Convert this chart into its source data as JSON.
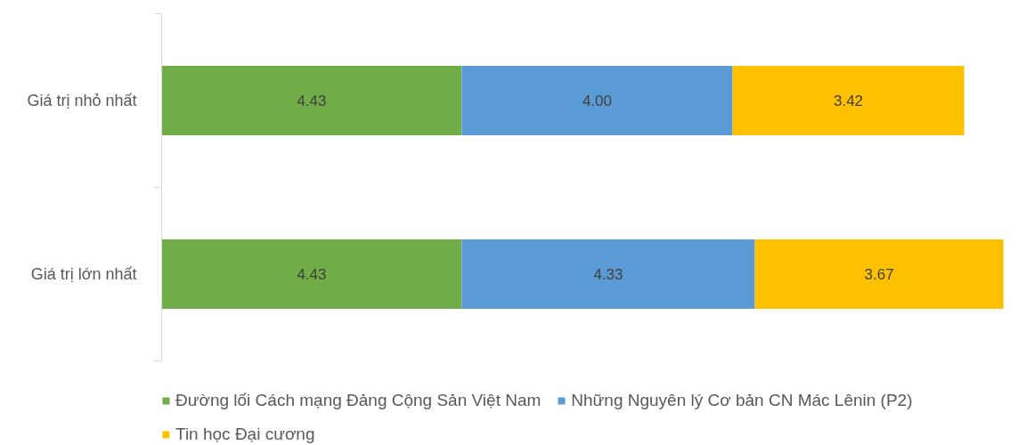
{
  "chart_data": {
    "type": "bar",
    "orientation": "horizontal",
    "stacked": true,
    "legend": "bottom",
    "categories": [
      "Giá trị nhỏ nhất",
      "Giá trị lớn nhất"
    ],
    "series": [
      {
        "name": "Đường lối Cách mạng Đảng Cộng Sản Việt Nam",
        "color": "#70ad47",
        "values": [
          4.43,
          4.43
        ],
        "value_labels": [
          "4.43",
          "4.43"
        ]
      },
      {
        "name": "Những Nguyên lý Cơ bản CN Mác Lênin (P2)",
        "color": "#5b9bd5",
        "values": [
          4.0,
          4.33
        ],
        "value_labels": [
          "4.00",
          "4.33"
        ]
      },
      {
        "name": "Tin học Đại cương",
        "color": "#ffc000",
        "values": [
          3.42,
          3.67
        ],
        "value_labels": [
          "3.42",
          "3.67"
        ]
      }
    ]
  }
}
